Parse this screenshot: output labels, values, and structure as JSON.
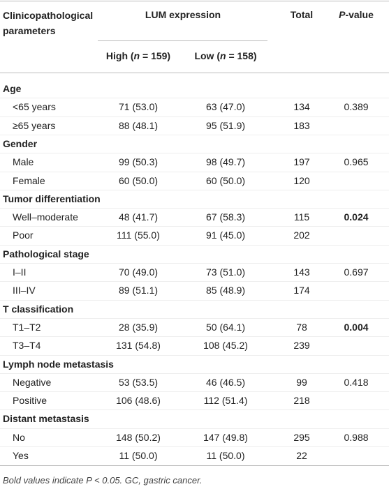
{
  "header": {
    "parameters": "Clinicopathological parameters",
    "expression": "LUM expression",
    "total": "Total",
    "p_value": [
      "P",
      "-value"
    ],
    "high": [
      "High (",
      "n",
      " = 159)"
    ],
    "low": [
      "Low (",
      "n",
      " = 158)"
    ]
  },
  "groups": [
    {
      "name": "Age",
      "rows": [
        {
          "label": "<65 years",
          "high": "71 (53.0)",
          "low": "63 (47.0)",
          "total": "134",
          "p": "0.389",
          "p_bold": false
        },
        {
          "label": "≥65 years",
          "high": "88 (48.1)",
          "low": "95 (51.9)",
          "total": "183"
        }
      ]
    },
    {
      "name": "Gender",
      "rows": [
        {
          "label": "Male",
          "high": "99 (50.3)",
          "low": "98 (49.7)",
          "total": "197",
          "p": "0.965",
          "p_bold": false
        },
        {
          "label": "Female",
          "high": "60 (50.0)",
          "low": "60 (50.0)",
          "total": "120"
        }
      ]
    },
    {
      "name": "Tumor differentiation",
      "rows": [
        {
          "label": "Well–moderate",
          "high": "48 (41.7)",
          "low": "67 (58.3)",
          "total": "115",
          "p": "0.024",
          "p_bold": true
        },
        {
          "label": "Poor",
          "high": "111 (55.0)",
          "low": "91 (45.0)",
          "total": "202"
        }
      ]
    },
    {
      "name": "Pathological stage",
      "rows": [
        {
          "label": "I–II",
          "high": "70 (49.0)",
          "low": "73 (51.0)",
          "total": "143",
          "p": "0.697",
          "p_bold": false
        },
        {
          "label": "III–IV",
          "high": "89 (51.1)",
          "low": "85 (48.9)",
          "total": "174"
        }
      ]
    },
    {
      "name": "T classification",
      "rows": [
        {
          "label": "T1–T2",
          "high": "28 (35.9)",
          "low": "50 (64.1)",
          "total": "78",
          "p": "0.004",
          "p_bold": true
        },
        {
          "label": "T3–T4",
          "high": "131 (54.8)",
          "low": "108 (45.2)",
          "total": "239"
        }
      ]
    },
    {
      "name": "Lymph node metastasis",
      "rows": [
        {
          "label": "Negative",
          "high": "53 (53.5)",
          "low": "46 (46.5)",
          "total": "99",
          "p": "0.418",
          "p_bold": false
        },
        {
          "label": "Positive",
          "high": "106 (48.6)",
          "low": "112 (51.4)",
          "total": "218"
        }
      ]
    },
    {
      "name": "Distant metastasis",
      "rows": [
        {
          "label": "No",
          "high": "148 (50.2)",
          "low": "147 (49.8)",
          "total": "295",
          "p": "0.988",
          "p_bold": false
        },
        {
          "label": "Yes",
          "high": "11 (50.0)",
          "low": "11 (50.0)",
          "total": "22"
        }
      ]
    }
  ],
  "footnote": "Bold values indicate P < 0.05. GC, gastric cancer."
}
